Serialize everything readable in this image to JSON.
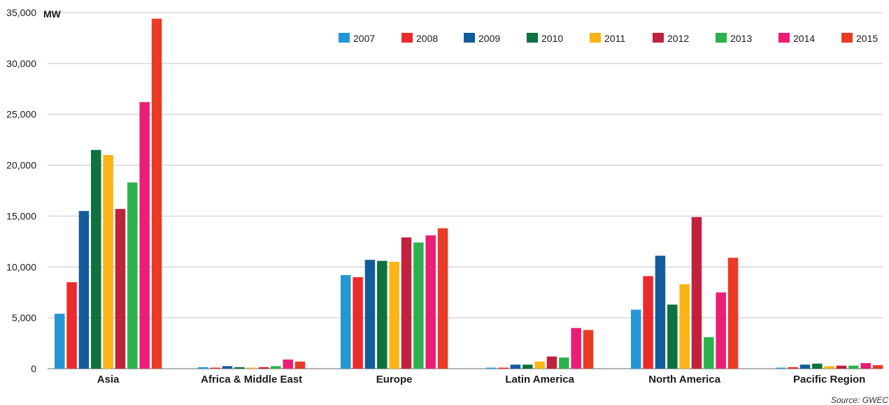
{
  "chart_data": {
    "type": "bar",
    "ylabel": "MW",
    "ylim": [
      0,
      35000
    ],
    "yticks": [
      0,
      5000,
      10000,
      15000,
      20000,
      25000,
      30000,
      35000
    ],
    "ytick_labels": [
      "0",
      "5,000",
      "10,000",
      "15,000",
      "20,000",
      "25,000",
      "30,000",
      "35,000"
    ],
    "grid": true,
    "legend_position": "top-right",
    "categories": [
      "Asia",
      "Africa & Middle East",
      "Europe",
      "Latin America",
      "North America",
      "Pacific Region"
    ],
    "series": [
      {
        "name": "2007",
        "color": "#2496d3",
        "values": [
          5400,
          150,
          9200,
          50,
          5800,
          100
        ]
      },
      {
        "name": "2008",
        "color": "#ed2a2b",
        "values": [
          8500,
          100,
          9000,
          100,
          9100,
          150
        ]
      },
      {
        "name": "2009",
        "color": "#135c9c",
        "values": [
          15500,
          250,
          10700,
          400,
          11100,
          400
        ]
      },
      {
        "name": "2010",
        "color": "#0d7140",
        "values": [
          21500,
          150,
          10600,
          400,
          6300,
          500
        ]
      },
      {
        "name": "2011",
        "color": "#fbb416",
        "values": [
          21000,
          100,
          10500,
          700,
          8300,
          250
        ]
      },
      {
        "name": "2012",
        "color": "#c0223e",
        "values": [
          15700,
          150,
          12900,
          1200,
          14900,
          300
        ]
      },
      {
        "name": "2013",
        "color": "#2bb24c",
        "values": [
          18300,
          250,
          12400,
          1100,
          3100,
          300
        ]
      },
      {
        "name": "2014",
        "color": "#e91e74",
        "values": [
          26200,
          900,
          13100,
          4000,
          7500,
          550
        ]
      },
      {
        "name": "2015",
        "color": "#ea3b24",
        "values": [
          34400,
          700,
          13800,
          3800,
          10900,
          350
        ]
      }
    ]
  },
  "source": "Source: GWEC"
}
